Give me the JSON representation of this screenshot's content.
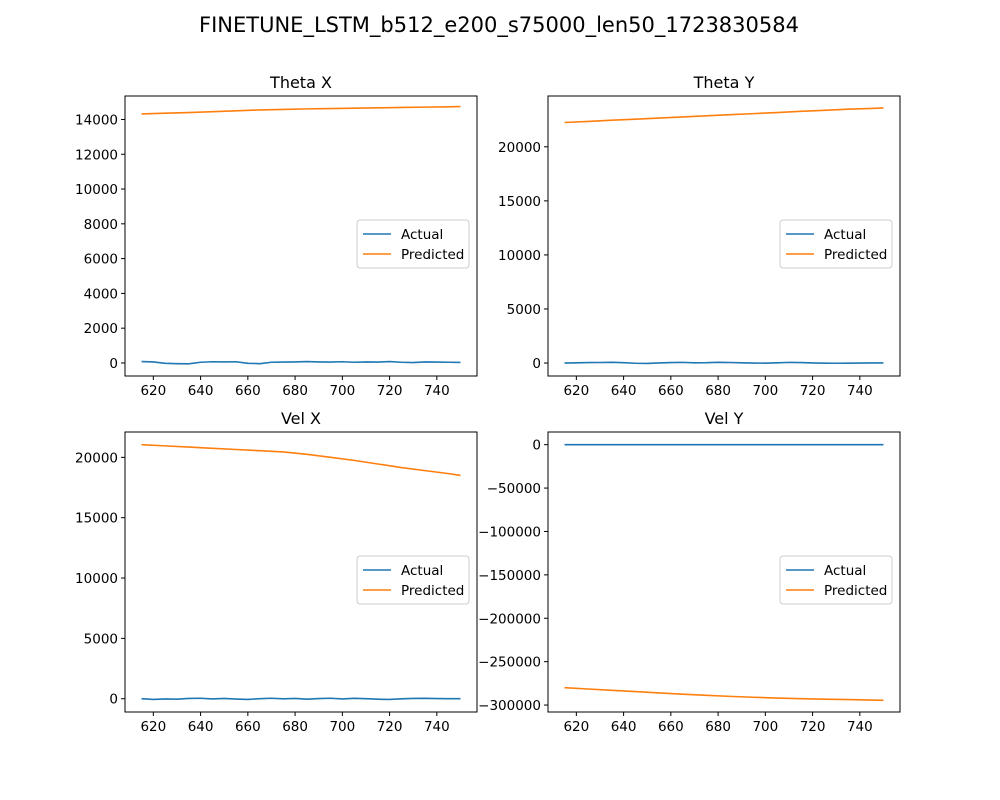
{
  "figure": {
    "suptitle": "FINETUNE_LSTM_b512_e200_s75000_len50_1723830584"
  },
  "colors": {
    "actual": "#1f77b4",
    "predicted": "#ff7f0e",
    "axes": "#000000",
    "legend_border": "#cccccc"
  },
  "chart_data": [
    {
      "type": "line",
      "title": "Theta X",
      "xlabel": "",
      "ylabel": "",
      "xlim": [
        608,
        757
      ],
      "ylim": [
        -750,
        15350
      ],
      "xticks": [
        620,
        640,
        660,
        680,
        700,
        720,
        740
      ],
      "yticks": [
        0,
        2000,
        4000,
        6000,
        8000,
        10000,
        12000,
        14000
      ],
      "grid": false,
      "legend": "center-right",
      "series": [
        {
          "name": "Actual",
          "color": "#1f77b4",
          "x": [
            615,
            620,
            625,
            630,
            635,
            640,
            645,
            650,
            655,
            660,
            665,
            670,
            675,
            680,
            685,
            690,
            695,
            700,
            705,
            710,
            715,
            720,
            725,
            730,
            735,
            740,
            745,
            750
          ],
          "y": [
            80,
            60,
            -20,
            -40,
            -50,
            40,
            70,
            60,
            70,
            -20,
            -40,
            40,
            50,
            60,
            80,
            60,
            50,
            70,
            40,
            60,
            50,
            80,
            40,
            20,
            60,
            50,
            40,
            30
          ]
        },
        {
          "name": "Predicted",
          "color": "#ff7f0e",
          "x": [
            615,
            625,
            635,
            645,
            655,
            665,
            675,
            685,
            695,
            705,
            715,
            725,
            735,
            745,
            750
          ],
          "y": [
            14320,
            14360,
            14400,
            14450,
            14500,
            14550,
            14580,
            14610,
            14630,
            14650,
            14670,
            14690,
            14710,
            14730,
            14740
          ]
        }
      ]
    },
    {
      "type": "line",
      "title": "Theta Y",
      "xlabel": "",
      "ylabel": "",
      "xlim": [
        608,
        757
      ],
      "ylim": [
        -1200,
        24700
      ],
      "xticks": [
        620,
        640,
        660,
        680,
        700,
        720,
        740
      ],
      "yticks": [
        0,
        5000,
        10000,
        15000,
        20000
      ],
      "grid": false,
      "legend": "center-right",
      "series": [
        {
          "name": "Actual",
          "color": "#1f77b4",
          "x": [
            615,
            620,
            625,
            630,
            635,
            640,
            645,
            650,
            655,
            660,
            665,
            670,
            675,
            680,
            685,
            690,
            695,
            700,
            705,
            710,
            715,
            720,
            725,
            730,
            735,
            740,
            745,
            750
          ],
          "y": [
            0,
            20,
            40,
            50,
            70,
            30,
            -20,
            -40,
            10,
            40,
            60,
            20,
            30,
            70,
            50,
            20,
            0,
            -10,
            20,
            60,
            40,
            10,
            -10,
            -20,
            -10,
            0,
            10,
            10
          ]
        },
        {
          "name": "Predicted",
          "color": "#ff7f0e",
          "x": [
            615,
            625,
            635,
            645,
            655,
            665,
            675,
            685,
            695,
            705,
            715,
            725,
            735,
            745,
            750
          ],
          "y": [
            22250,
            22350,
            22460,
            22560,
            22660,
            22760,
            22870,
            22970,
            23070,
            23170,
            23280,
            23380,
            23480,
            23550,
            23600
          ]
        }
      ]
    },
    {
      "type": "line",
      "title": "Vel X",
      "xlabel": "",
      "ylabel": "",
      "xlim": [
        608,
        757
      ],
      "ylim": [
        -1100,
        22100
      ],
      "xticks": [
        620,
        640,
        660,
        680,
        700,
        720,
        740
      ],
      "yticks": [
        0,
        5000,
        10000,
        15000,
        20000
      ],
      "grid": false,
      "legend": "center-right",
      "series": [
        {
          "name": "Actual",
          "color": "#1f77b4",
          "x": [
            615,
            620,
            625,
            630,
            635,
            640,
            645,
            650,
            655,
            660,
            665,
            670,
            675,
            680,
            685,
            690,
            695,
            700,
            705,
            710,
            715,
            720,
            725,
            730,
            735,
            740,
            745,
            750
          ],
          "y": [
            0,
            -60,
            -20,
            -40,
            20,
            40,
            -20,
            20,
            -30,
            -60,
            0,
            40,
            -10,
            20,
            -40,
            10,
            40,
            -20,
            30,
            0,
            -40,
            -60,
            -10,
            20,
            30,
            10,
            0,
            0
          ]
        },
        {
          "name": "Predicted",
          "color": "#ff7f0e",
          "x": [
            615,
            625,
            635,
            645,
            655,
            665,
            675,
            685,
            695,
            705,
            715,
            725,
            735,
            745,
            750
          ],
          "y": [
            21050,
            20950,
            20850,
            20750,
            20650,
            20550,
            20450,
            20250,
            20000,
            19750,
            19450,
            19150,
            18900,
            18650,
            18500
          ]
        }
      ]
    },
    {
      "type": "line",
      "title": "Vel Y",
      "xlabel": "",
      "ylabel": "",
      "xlim": [
        608,
        757
      ],
      "ylim": [
        -308000,
        14600
      ],
      "xticks": [
        620,
        640,
        660,
        680,
        700,
        720,
        740
      ],
      "yticks": [
        0,
        -50000,
        -100000,
        -150000,
        -200000,
        -250000,
        -300000
      ],
      "grid": false,
      "legend": "center-right",
      "series": [
        {
          "name": "Actual",
          "color": "#1f77b4",
          "x": [
            615,
            630,
            645,
            660,
            675,
            690,
            705,
            720,
            735,
            750
          ],
          "y": [
            0,
            0,
            0,
            0,
            0,
            0,
            0,
            0,
            0,
            0
          ]
        },
        {
          "name": "Predicted",
          "color": "#ff7f0e",
          "x": [
            615,
            625,
            635,
            645,
            655,
            665,
            675,
            685,
            695,
            705,
            715,
            725,
            735,
            745,
            750
          ],
          "y": [
            -280000,
            -281500,
            -283000,
            -284500,
            -286000,
            -287500,
            -288800,
            -290000,
            -291000,
            -292000,
            -292700,
            -293200,
            -293700,
            -294200,
            -294500
          ]
        }
      ]
    }
  ]
}
